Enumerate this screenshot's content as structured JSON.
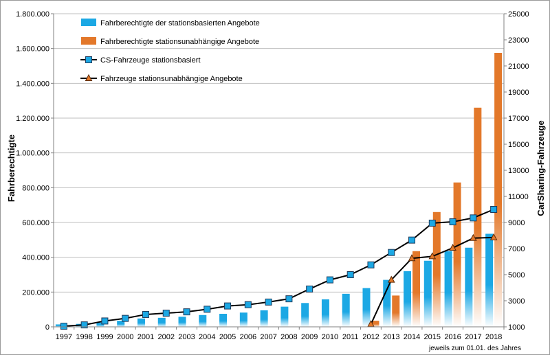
{
  "chart_data": {
    "type": "bar",
    "categories": [
      "1997",
      "1998",
      "1999",
      "2000",
      "2001",
      "2002",
      "2003",
      "2004",
      "2005",
      "2006",
      "2007",
      "2008",
      "2009",
      "2010",
      "2011",
      "2012",
      "2013",
      "2014",
      "2015",
      "2016",
      "2017",
      "2018"
    ],
    "x_note": "jeweils  zum 01.01. des Jahres",
    "y_left": {
      "label": "Fahrberechtigte",
      "range": [
        0,
        1800000
      ],
      "ticks": [
        0,
        200000,
        400000,
        600000,
        800000,
        1000000,
        1200000,
        1400000,
        1600000,
        1800000
      ],
      "tick_labels": [
        "0",
        "200.000",
        "400.000",
        "600.000",
        "800.000",
        "1.000.000",
        "1.200.000",
        "1.400.000",
        "1.600.000",
        "1.800.000"
      ]
    },
    "y_right": {
      "label": "CarSharing-Fahrzeuge",
      "range": [
        1000,
        25000
      ],
      "ticks": [
        1000,
        3000,
        5000,
        7000,
        9000,
        11000,
        13000,
        15000,
        17000,
        19000,
        21000,
        23000,
        25000
      ],
      "tick_labels": [
        "1000",
        "3000",
        "5000",
        "7000",
        "9000",
        "11000",
        "13000",
        "15000",
        "17000",
        "19000",
        "21000",
        "23000",
        "25000"
      ]
    },
    "series": [
      {
        "name": "Fahrberechtigte der stationsbasierten Angebote",
        "kind": "bar",
        "axis": "left",
        "color": "#1ca8e4",
        "values": [
          14000,
          17000,
          25000,
          35000,
          48000,
          52000,
          58000,
          68000,
          75000,
          82000,
          95000,
          116000,
          137000,
          158000,
          190000,
          223000,
          270000,
          320000,
          380000,
          435000,
          455000,
          535000
        ]
      },
      {
        "name": "Fahrberechtigte stationsunabhängige Angebote",
        "kind": "bar",
        "axis": "left",
        "color": "#e3782a",
        "values": [
          null,
          null,
          null,
          null,
          null,
          null,
          null,
          null,
          null,
          null,
          null,
          null,
          null,
          null,
          null,
          35000,
          180000,
          435000,
          660000,
          830000,
          1260000,
          1575000
        ]
      },
      {
        "name": "CS-Fahrzeuge stationsbasiert",
        "kind": "line",
        "marker": "square",
        "axis": "right",
        "color": "#1ca8e4",
        "values": [
          1050,
          1150,
          1450,
          1650,
          1950,
          2050,
          2150,
          2350,
          2600,
          2700,
          2900,
          3150,
          3900,
          4600,
          5000,
          5750,
          6700,
          7650,
          8950,
          9050,
          9350,
          10000
        ]
      },
      {
        "name": "Fahrzeuge stationsunabhängige Angebote",
        "kind": "line",
        "marker": "triangle",
        "axis": "right",
        "color": "#e3782a",
        "values": [
          null,
          null,
          null,
          null,
          null,
          null,
          null,
          null,
          null,
          null,
          null,
          null,
          null,
          null,
          null,
          1200,
          4600,
          6250,
          6400,
          7050,
          7800,
          7850
        ]
      }
    ],
    "legend_position": "top-left",
    "grid": true
  }
}
